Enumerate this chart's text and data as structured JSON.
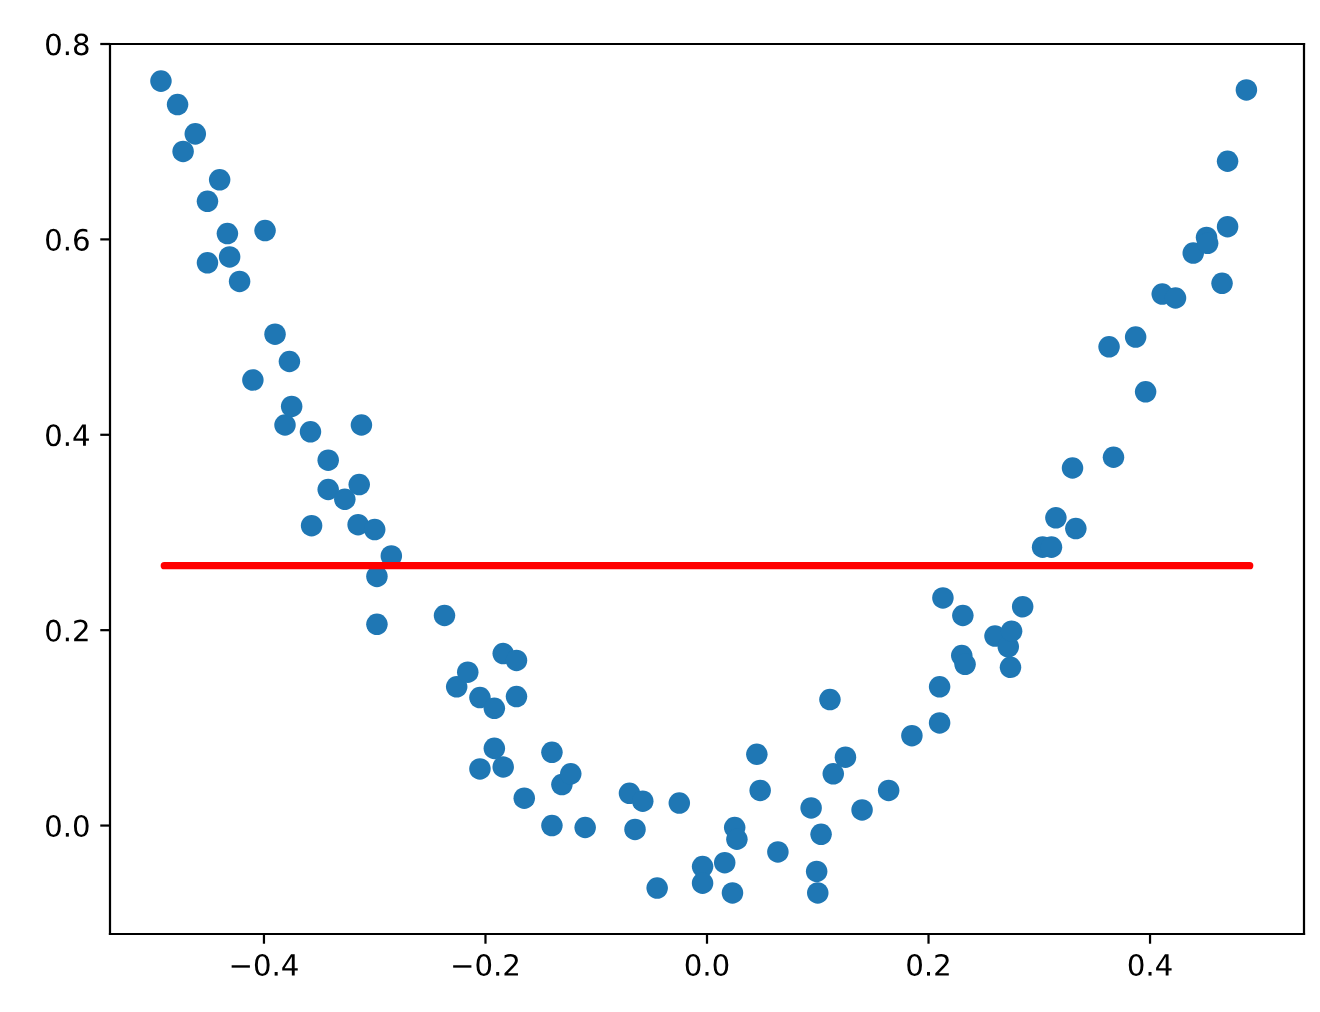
{
  "chart_data": {
    "type": "scatter",
    "xlim": [
      -0.539,
      0.539
    ],
    "ylim": [
      -0.111,
      0.8
    ],
    "xticks": [
      {
        "value": -0.4,
        "label": "−0.4"
      },
      {
        "value": -0.2,
        "label": "−0.2"
      },
      {
        "value": 0.0,
        "label": "0.0"
      },
      {
        "value": 0.2,
        "label": "0.2"
      },
      {
        "value": 0.4,
        "label": "0.4"
      }
    ],
    "yticks": [
      {
        "value": 0.0,
        "label": "0.0"
      },
      {
        "value": 0.2,
        "label": "0.2"
      },
      {
        "value": 0.4,
        "label": "0.4"
      },
      {
        "value": 0.6,
        "label": "0.6"
      },
      {
        "value": 0.8,
        "label": "0.8"
      }
    ],
    "series": [
      {
        "color": "#1f77b4",
        "marker": "circle",
        "x": [
          -0.493,
          -0.478,
          -0.473,
          -0.462,
          -0.451,
          -0.451,
          -0.44,
          -0.433,
          -0.431,
          -0.422,
          -0.41,
          -0.399,
          -0.39,
          -0.381,
          -0.377,
          -0.375,
          -0.358,
          -0.357,
          -0.342,
          -0.342,
          -0.327,
          -0.315,
          -0.314,
          -0.312,
          -0.3,
          -0.298,
          -0.298,
          -0.285,
          -0.237,
          -0.226,
          -0.216,
          -0.205,
          -0.205,
          -0.192,
          -0.192,
          -0.184,
          -0.184,
          -0.172,
          -0.172,
          -0.165,
          -0.14,
          -0.14,
          -0.131,
          -0.123,
          -0.11,
          -0.07,
          -0.065,
          -0.058,
          -0.045,
          -0.025,
          -0.004,
          -0.004,
          0.016,
          0.023,
          0.025,
          0.027,
          0.045,
          0.048,
          0.064,
          0.094,
          0.099,
          0.1,
          0.103,
          0.111,
          0.114,
          0.125,
          0.14,
          0.164,
          0.185,
          0.21,
          0.21,
          0.213,
          0.23,
          0.231,
          0.233,
          0.26,
          0.272,
          0.274,
          0.275,
          0.285,
          0.303,
          0.311,
          0.315,
          0.33,
          0.333,
          0.363,
          0.367,
          0.387,
          0.396,
          0.411,
          0.423,
          0.439,
          0.451,
          0.452,
          0.465,
          0.47,
          0.47,
          0.487
        ],
        "values": [
          0.762,
          0.738,
          0.69,
          0.708,
          0.639,
          0.576,
          0.661,
          0.606,
          0.582,
          0.557,
          0.456,
          0.609,
          0.503,
          0.41,
          0.475,
          0.429,
          0.403,
          0.307,
          0.374,
          0.344,
          0.334,
          0.308,
          0.349,
          0.41,
          0.303,
          0.255,
          0.206,
          0.276,
          0.215,
          0.142,
          0.157,
          0.131,
          0.058,
          0.12,
          0.079,
          0.176,
          0.06,
          0.169,
          0.132,
          0.028,
          0.075,
          0.0,
          0.042,
          0.053,
          -0.002,
          0.033,
          -0.004,
          0.025,
          -0.064,
          0.023,
          -0.042,
          -0.059,
          -0.038,
          -0.069,
          -0.002,
          -0.014,
          0.073,
          0.036,
          -0.027,
          0.018,
          -0.047,
          -0.069,
          -0.009,
          0.129,
          0.053,
          0.07,
          0.016,
          0.036,
          0.092,
          0.105,
          0.142,
          0.233,
          0.174,
          0.215,
          0.165,
          0.194,
          0.183,
          0.162,
          0.199,
          0.224,
          0.285,
          0.285,
          0.315,
          0.366,
          0.304,
          0.49,
          0.377,
          0.5,
          0.444,
          0.544,
          0.54,
          0.586,
          0.602,
          0.596,
          0.555,
          0.68,
          0.613,
          0.753
        ]
      },
      {
        "type": "line",
        "color": "#ff0000",
        "line_style": "solid",
        "x": [
          -0.49,
          0.49
        ],
        "values": [
          0.266,
          0.266
        ]
      }
    ]
  }
}
